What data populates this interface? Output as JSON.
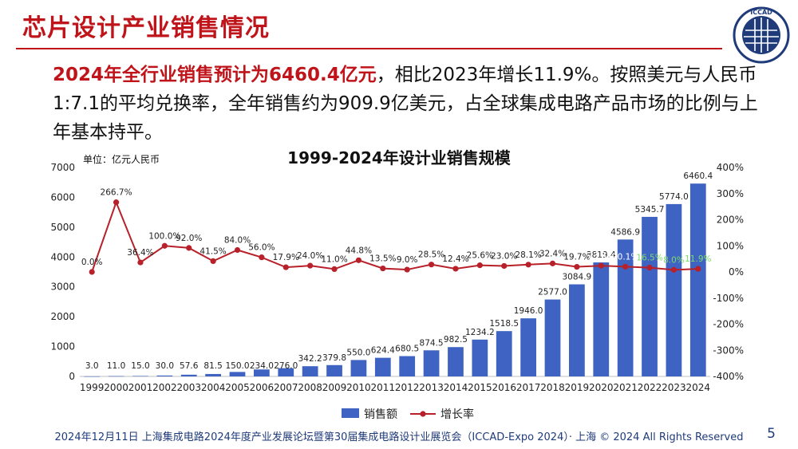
{
  "slide": {
    "title": "芯片设计产业销售情况",
    "logo_text": "ICCAD",
    "summary_highlight": "2024年全行业销售预计为6460.4亿元",
    "summary_rest": "，相比2023年增长11.9%。按照美元与人民币1:7.1的平均兑换率，全年销售约为909.9亿美元，占全球集成电路产品市场的比例与上年基本持平。",
    "footer": "2024年12月11日 上海集成电路2024年度产业发展论坛暨第30届集成电路设计业展览会（ICCAD-Expo 2024）· 上海 © 2024 All Rights Reserved",
    "page_number": "5"
  },
  "colors": {
    "accent": "#c0141b",
    "bar": "#3e63c2",
    "line": "#b8202a",
    "footer": "#1f3b7a"
  },
  "chart_data": {
    "type": "bar",
    "title": "1999-2024年设计业销售规模",
    "unit_label": "单位：亿元人民币",
    "categories": [
      "1999",
      "2000",
      "2001",
      "2002",
      "2003",
      "2004",
      "2005",
      "2006",
      "2007",
      "2008",
      "2009",
      "2010",
      "2011",
      "2012",
      "2013",
      "2014",
      "2015",
      "2016",
      "2017",
      "2018",
      "2019",
      "2020",
      "2021",
      "2022",
      "2023",
      "2024"
    ],
    "series": [
      {
        "name": "销售额",
        "type": "bar",
        "axis": "left",
        "values": [
          3.0,
          11.0,
          15.0,
          30.0,
          57.6,
          81.5,
          150.0,
          234.0,
          276.0,
          342.2,
          379.8,
          550.0,
          624.4,
          680.5,
          874.5,
          982.5,
          1234.2,
          1518.5,
          1946.0,
          2577.0,
          3084.9,
          3819.4,
          4586.9,
          5345.7,
          5774.0,
          6460.4
        ],
        "labels": [
          "3.0",
          "11.0",
          "15.0",
          "30.0",
          "57.6",
          "81.5",
          "150.0",
          "234.0",
          "276.0",
          "342.2",
          "379.8",
          "550.0",
          "624.4",
          "680.5",
          "874.5",
          "982.5",
          "1234.2",
          "1518.5",
          "1946.0",
          "2577.0",
          "3084.9",
          "3819.4",
          "4586.9",
          "5345.7",
          "5774.0",
          "6460.4"
        ]
      },
      {
        "name": "增长率",
        "type": "line",
        "axis": "right",
        "values": [
          0.0,
          266.7,
          36.4,
          100.0,
          92.0,
          41.5,
          84.0,
          56.0,
          17.9,
          24.0,
          11.0,
          44.8,
          13.5,
          9.0,
          28.5,
          12.4,
          25.6,
          23.0,
          28.1,
          32.4,
          19.7,
          23.8,
          20.1,
          16.5,
          8.0,
          11.9
        ],
        "labels": [
          "0.0%",
          "266.7%",
          "36.4%",
          "100.0%",
          "92.0%",
          "41.5%",
          "84.0%",
          "56.0%",
          "17.9%",
          "24.0%",
          "11.0%",
          "44.8%",
          "13.5%",
          "9.0%",
          "28.5%",
          "12.4%",
          "25.6%",
          "23.0%",
          "28.1%",
          "32.4%",
          "19.7%",
          "23.8%",
          "20.1%",
          "16.5%",
          "8.0%",
          "11.9%"
        ]
      }
    ],
    "y_left": {
      "min": 0,
      "max": 7000,
      "ticks": [
        "0",
        "1000",
        "2000",
        "3000",
        "4000",
        "5000",
        "6000",
        "7000"
      ]
    },
    "y_right": {
      "min": -400,
      "max": 400,
      "ticks": [
        "-400%",
        "-300%",
        "-200%",
        "-100%",
        "0%",
        "100%",
        "200%",
        "300%",
        "400%"
      ]
    },
    "grid": false,
    "legend_position": "bottom"
  }
}
